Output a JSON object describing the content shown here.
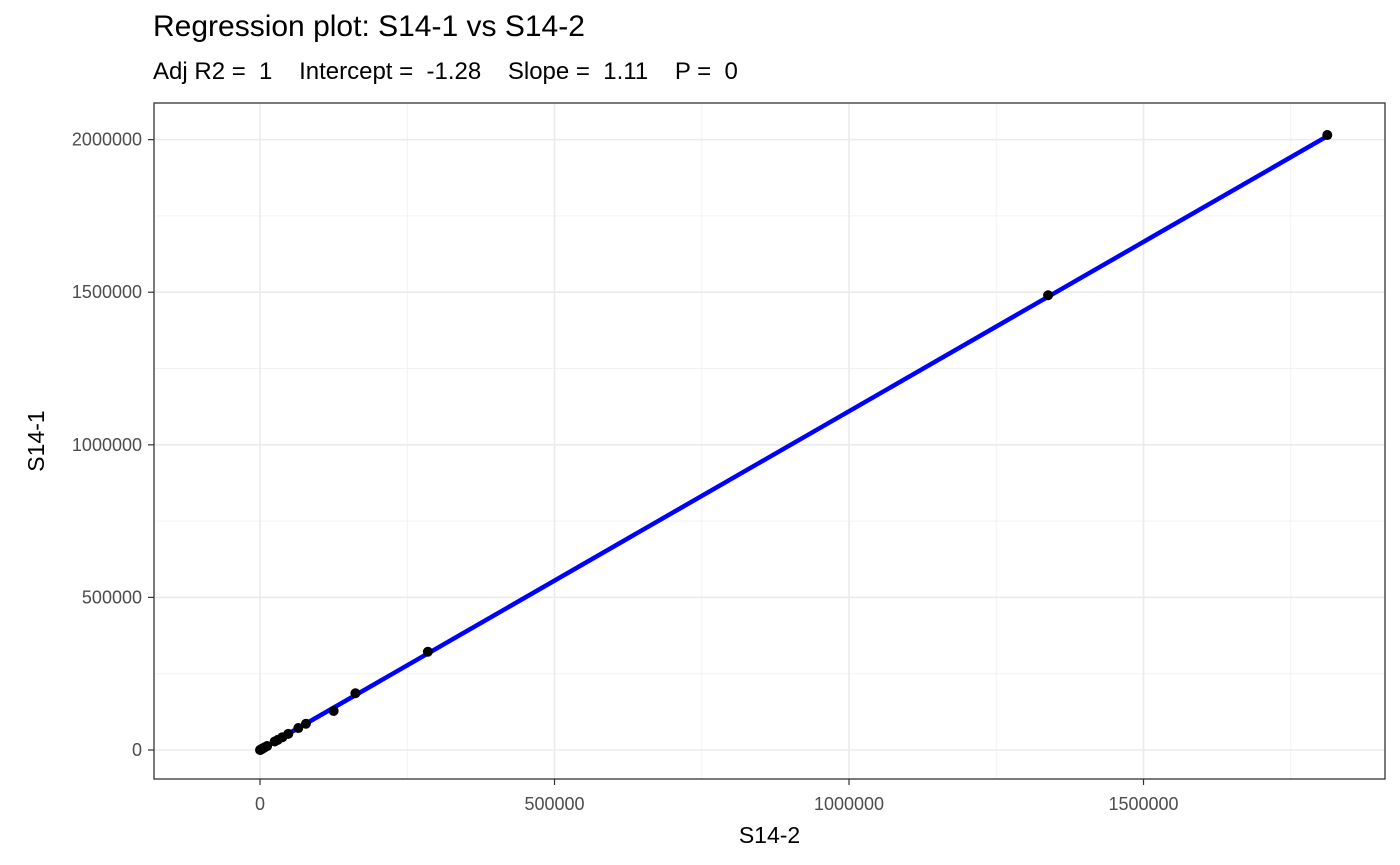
{
  "chart_data": {
    "type": "scatter",
    "title": "Regression plot: S14-1 vs S14-2",
    "subtitle": "Adj R2 =  1    Intercept =  -1.28    Slope =  1.11    P =  0",
    "xlabel": "S14-2",
    "ylabel": "S14-1",
    "xlim": [
      -180000,
      1910000
    ],
    "ylim": [
      -95000,
      2120000
    ],
    "xticks": [
      0,
      500000,
      1000000,
      1500000
    ],
    "yticks": [
      0,
      500000,
      1000000,
      1500000,
      2000000
    ],
    "xtick_labels": [
      "0",
      "500000",
      "1000000",
      "1500000"
    ],
    "ytick_labels": [
      "0",
      "500000",
      "1000000",
      "1500000",
      "2000000"
    ],
    "grid": true,
    "regression": {
      "intercept": -1.28,
      "slope": 1.11,
      "adj_r2": 1,
      "p": 0,
      "color": "#0000ff"
    },
    "points_color": "#000000",
    "x": [
      0,
      500,
      1000,
      1500,
      2500,
      4000,
      6000,
      8000,
      12000,
      25000,
      30000,
      38000,
      48000,
      65000,
      78000,
      125000,
      162000,
      285000,
      1338000,
      1812000
    ],
    "y": [
      0,
      600,
      1100,
      1700,
      2800,
      4400,
      6700,
      8900,
      13000,
      28000,
      33000,
      42000,
      53000,
      72000,
      86000,
      128000,
      186000,
      322000,
      1490000,
      2015000
    ]
  }
}
